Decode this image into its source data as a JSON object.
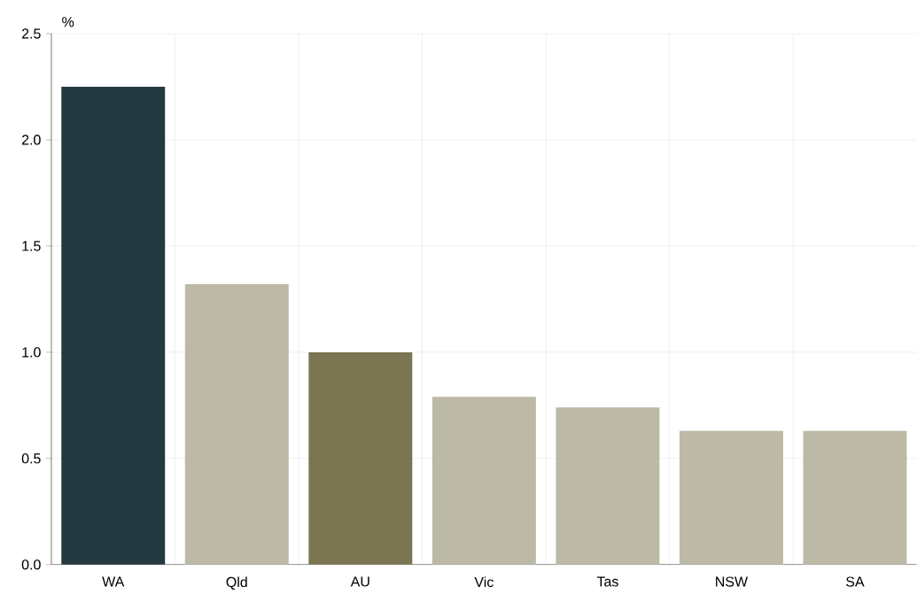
{
  "chart_data": {
    "type": "bar",
    "ylabel": "%",
    "categories": [
      "WA",
      "Qld",
      "AU",
      "Vic",
      "Tas",
      "NSW",
      "SA"
    ],
    "values": [
      2.25,
      1.32,
      1.0,
      0.79,
      0.74,
      0.63,
      0.63
    ],
    "colors": [
      "#233a40",
      "#bcb9a6",
      "#7b7551",
      "#bcb9a6",
      "#bcb9a6",
      "#bcb9a6",
      "#bcb9a6"
    ],
    "ylim": [
      0,
      2.5
    ],
    "yticks": [
      {
        "value": 0,
        "label": "0.0"
      },
      {
        "value": 0.5,
        "label": "0.5"
      },
      {
        "value": 1.0,
        "label": "1.0"
      },
      {
        "value": 1.5,
        "label": "1.5"
      },
      {
        "value": 2.0,
        "label": "2.0"
      },
      {
        "value": 2.5,
        "label": "2.5"
      }
    ],
    "grid": true
  }
}
